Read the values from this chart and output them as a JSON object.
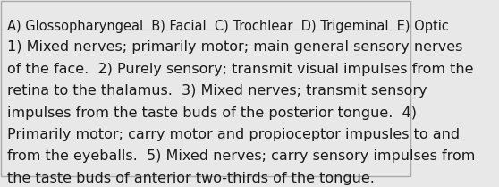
{
  "background_color": "#e8e8e8",
  "border_color": "#aaaaaa",
  "text_color": "#1a1a1a",
  "line1": "A) Glossopharyngeal  B) Facial  C) Trochlear  D) Trigeminal  E) Optic",
  "line2": "1) Mixed nerves; primarily motor; main general sensory nerves",
  "line3": "of the face.  2) Purely sensory; transmit visual impulses from the",
  "line4": "retina to the thalamus.  3) Mixed nerves; transmit sensory",
  "line5": "impulses from the taste buds of the posterior tongue.  4)",
  "line6": "Primarily motor; carry motor and propioceptor impusles to and",
  "line7": "from the eyeballs.  5) Mixed nerves; carry sensory impulses from",
  "line8": "the taste buds of anterior two-thirds of the tongue.",
  "font_size_header": 10.5,
  "font_size_body": 11.5,
  "figwidth": 5.58,
  "figheight": 2.09,
  "dpi": 100
}
